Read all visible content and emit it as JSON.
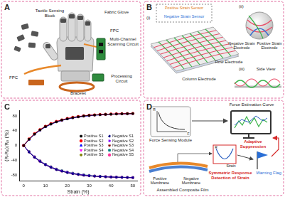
{
  "chart_data": {
    "panel": "C",
    "type": "line",
    "x_label": "Strain (%)",
    "y_label": "(R-R₀)/R₀ (%)",
    "x": [
      0,
      2.5,
      5,
      7.5,
      10,
      12.5,
      15,
      17.5,
      20,
      22.5,
      25,
      27.5,
      30,
      32.5,
      35,
      37.5,
      40,
      42.5,
      45,
      47.5,
      50
    ],
    "xlim": [
      -2,
      52
    ],
    "xticks": [
      0,
      10,
      20,
      30,
      40,
      50
    ],
    "ylim": [
      -95,
      95
    ],
    "yticks": [
      -80,
      -40,
      0,
      40,
      80
    ],
    "grid": false,
    "legend": "right",
    "line_style": "solid",
    "series": [
      {
        "name": "Positive S1",
        "color": "#000000",
        "marker": "square",
        "values": [
          0,
          17,
          31,
          42,
          51,
          58,
          64,
          68.5,
          72,
          75,
          77.5,
          79.5,
          81,
          82,
          83,
          83.8,
          84.4,
          85,
          85.4,
          85.7,
          86
        ]
      },
      {
        "name": "Positive S2",
        "color": "#ff0000",
        "marker": "circle",
        "values": [
          0,
          18,
          32,
          43,
          52,
          59,
          65,
          69,
          73,
          76,
          78,
          80,
          81.5,
          82.5,
          83.5,
          84.2,
          84.8,
          85.3,
          85.7,
          86,
          86.3
        ]
      },
      {
        "name": "Positive S3",
        "color": "#0000ff",
        "marker": "triangle",
        "values": [
          0,
          16,
          30,
          41,
          50,
          57,
          63,
          67.5,
          71,
          74,
          76.5,
          78.5,
          80,
          81.5,
          82.5,
          83.3,
          84,
          84.6,
          85,
          85.4,
          85.7
        ]
      },
      {
        "name": "Positive S4",
        "color": "#ff00ff",
        "marker": "triangle-down",
        "values": [
          0,
          17.5,
          31.5,
          42.5,
          51.5,
          58.5,
          64.5,
          69,
          72.5,
          75.5,
          78,
          80,
          81.5,
          82.5,
          83.4,
          84.1,
          84.7,
          85.2,
          85.6,
          85.9,
          86.2
        ]
      },
      {
        "name": "Positive S5",
        "color": "#808000",
        "marker": "diamond",
        "values": [
          0,
          16.5,
          30.5,
          41.5,
          50.5,
          57.5,
          63.5,
          68,
          71.5,
          74.5,
          77,
          79,
          80.5,
          81.7,
          82.7,
          83.5,
          84.2,
          84.8,
          85.2,
          85.6,
          85.9
        ]
      },
      {
        "name": "Negative S1",
        "color": "#000080",
        "marker": "triangle-left",
        "values": [
          0,
          -18,
          -32,
          -43,
          -52,
          -59,
          -65,
          -69,
          -73,
          -76,
          -78,
          -80,
          -81.5,
          -82.5,
          -83.5,
          -84.2,
          -84.8,
          -85.3,
          -85.7,
          -86,
          -86.3
        ]
      },
      {
        "name": "Negative S2",
        "color": "#8000ff",
        "marker": "triangle-right",
        "values": [
          0,
          -17,
          -31,
          -42,
          -51,
          -58,
          -64,
          -68.5,
          -72,
          -75,
          -77.5,
          -79.5,
          -81,
          -82,
          -83,
          -83.8,
          -84.4,
          -85,
          -85.4,
          -85.7,
          -86
        ]
      },
      {
        "name": "Negative S3",
        "color": "#800000",
        "marker": "star",
        "values": [
          0,
          -17.5,
          -31.5,
          -42.5,
          -51.5,
          -58.5,
          -64.5,
          -69,
          -72.5,
          -75.5,
          -78,
          -80,
          -81.5,
          -82.5,
          -83.4,
          -84.1,
          -84.7,
          -85.2,
          -85.6,
          -85.9,
          -86.2
        ]
      },
      {
        "name": "Negative S4",
        "color": "#008080",
        "marker": "square",
        "values": [
          0,
          -16,
          -30,
          -41,
          -50,
          -57,
          -63,
          -67.5,
          -71,
          -74,
          -76.5,
          -78.5,
          -80,
          -81.5,
          -82.5,
          -83.3,
          -84,
          -84.6,
          -85,
          -85.4,
          -85.7
        ]
      },
      {
        "name": "Negative S5",
        "color": "#ff3399",
        "marker": "circle",
        "values": [
          0,
          -16.5,
          -30.5,
          -41.5,
          -50.5,
          -57.5,
          -63.5,
          -68,
          -71.5,
          -74.5,
          -77,
          -79,
          -80.5,
          -81.7,
          -82.7,
          -83.5,
          -84.2,
          -84.8,
          -85.2,
          -85.6,
          -85.9
        ]
      }
    ]
  },
  "panel_A": {
    "label": "A",
    "tactile_sensing_block": "Tactile Sensing Block",
    "fabric_glove": "Fabric Glove",
    "fpc_left": "FPC",
    "fpc_right": "FPC",
    "scanning_circuit": "Multi-Channel Scanning Circuit",
    "processing_circuit": "Processing Circuit",
    "bracelet": "Bracelet"
  },
  "panel_B": {
    "label": "B",
    "sub_i": "(i)",
    "positive_strain_sensor": "Positive Strain Sensor",
    "negative_strain_sensor": "Negative Strain Sensor",
    "row_electrode": "Row Electrode",
    "column_electrode": "Column Electrode",
    "sub_ii": "(ii)",
    "negative_strain_electrode": "Negative Strain Electrode",
    "positive_strain_electrode": "Positive Strain Electrode",
    "sub_iii": "(iii)",
    "side_view": "Side View"
  },
  "panel_D": {
    "label": "D",
    "force_sensing_module": "Force Sensing Module",
    "force_estimation_curve": "Force Estimation Curve",
    "adaptive_suppression": "Adaptive Suppression",
    "symmetric_response": "Symmetric Response Detection of Strain",
    "warning_flag": "Warning Flag",
    "positive_membrane": "Positive Membrane",
    "negative_membrane": "Negative Membrane",
    "assembled_composite_film": "Assembled Composite Film",
    "icon_force_axis_y": "R",
    "icon_force_axis_x": "F",
    "icon_strain_axis_y": "R",
    "icon_strain_axis_x": "Strain"
  }
}
